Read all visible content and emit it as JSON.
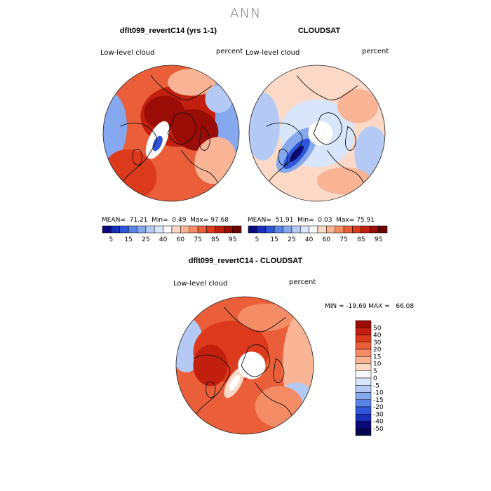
{
  "page_title": "ANN",
  "chart_data": [
    {
      "type": "heatmap",
      "title": "dflt099_revertC14 (yrs 1-1)",
      "variable_label": "Low-level cloud",
      "units_label": "percent",
      "stats": {
        "mean_label": "MEAN=",
        "mean": "71.21",
        "min_label": "Min=",
        "min": "0.49",
        "max_label": "Max=",
        "max": "97.68"
      },
      "colorbar": {
        "orientation": "horizontal",
        "levels": [
          5,
          10,
          15,
          20,
          25,
          30,
          40,
          50,
          60,
          70,
          75,
          80,
          85,
          90,
          95
        ],
        "tick_labels": [
          "5",
          "15",
          "25",
          "40",
          "60",
          "75",
          "85",
          "95"
        ],
        "colors": [
          "#0a0a7a",
          "#1a2fb8",
          "#2f55d8",
          "#5a83e6",
          "#86a8ee",
          "#b4caf5",
          "#d8e5fa",
          "#f7f7f7",
          "#fcd9c6",
          "#f8b495",
          "#f48c66",
          "#ea5f3a",
          "#dc3a1c",
          "#c21f0e",
          "#9a0d06",
          "#6e0402"
        ]
      }
    },
    {
      "type": "heatmap",
      "title": "CLOUDSAT",
      "variable_label": "Low-level cloud",
      "units_label": "percent",
      "stats": {
        "mean_label": "MEAN=",
        "mean": "51.91",
        "min_label": "Min=",
        "min": "0.03",
        "max_label": "Max=",
        "max": "75.91"
      },
      "colorbar": {
        "orientation": "horizontal",
        "levels": [
          5,
          10,
          15,
          20,
          25,
          30,
          40,
          50,
          60,
          70,
          75,
          80,
          85,
          90,
          95
        ],
        "tick_labels": [
          "5",
          "15",
          "25",
          "40",
          "60",
          "75",
          "85",
          "95"
        ],
        "colors": [
          "#0a0a7a",
          "#1a2fb8",
          "#2f55d8",
          "#5a83e6",
          "#86a8ee",
          "#b4caf5",
          "#d8e5fa",
          "#f7f7f7",
          "#fcd9c6",
          "#f8b495",
          "#f48c66",
          "#ea5f3a",
          "#dc3a1c",
          "#c21f0e",
          "#9a0d06",
          "#6e0402"
        ]
      }
    },
    {
      "type": "heatmap",
      "title": "dflt099_revertC14 - CLOUDSAT",
      "variable_label": "Low-level cloud",
      "units_label": "percent",
      "stats": {
        "range_label": "MIN = -19.69 MAX =   66.08"
      },
      "colorbar": {
        "orientation": "vertical",
        "tick_labels": [
          "50",
          "40",
          "30",
          "20",
          "15",
          "10",
          "5",
          "0",
          "-5",
          "-10",
          "-15",
          "-20",
          "-30",
          "-40",
          "-50"
        ],
        "colors": [
          "#9a0d06",
          "#c21f0e",
          "#dc3a1c",
          "#ea5f3a",
          "#f48c66",
          "#f8b495",
          "#fcd9c6",
          "#f7f7f7",
          "#d8e5fa",
          "#b4caf5",
          "#86a8ee",
          "#5a83e6",
          "#2f55d8",
          "#1a2fb8",
          "#0a0a7a",
          "#05054d"
        ]
      }
    }
  ]
}
